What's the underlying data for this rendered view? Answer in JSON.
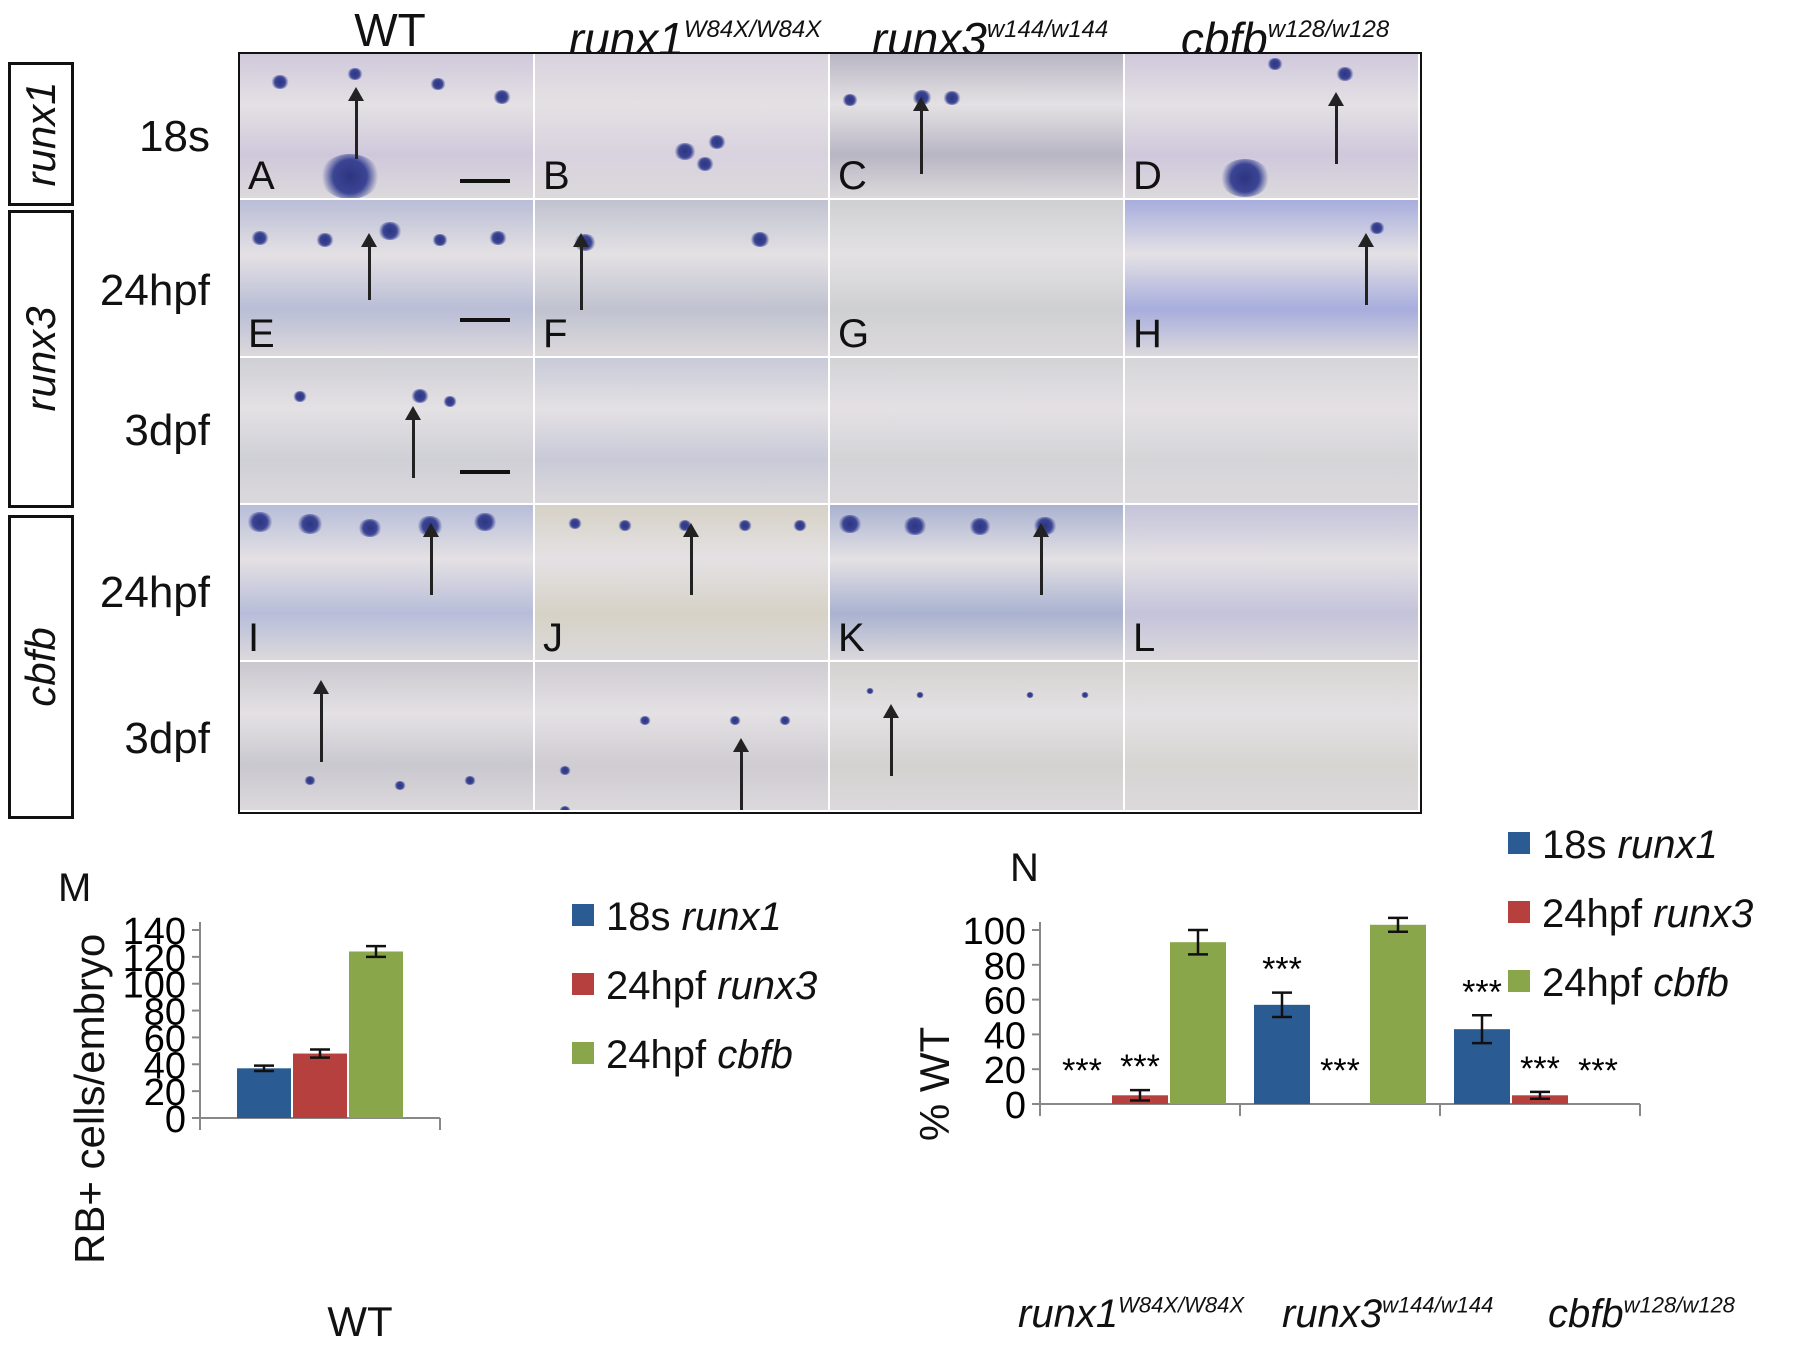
{
  "columns": [
    {
      "gene": "WT",
      "allele": ""
    },
    {
      "gene": "runx1",
      "allele": "W84X/W84X"
    },
    {
      "gene": "runx3",
      "allele": "w144/w144"
    },
    {
      "gene": "cbfb",
      "allele": "w128/w128"
    }
  ],
  "probes": [
    "runx1",
    "runx3",
    "cbfb"
  ],
  "rows": [
    {
      "stage": "18s",
      "labels": [
        "A",
        "B",
        "C",
        "D"
      ]
    },
    {
      "stage": "24hpf",
      "labels": [
        "E",
        "F",
        "G",
        "H"
      ]
    },
    {
      "stage": "3dpf",
      "labels": [
        "",
        "",
        "",
        ""
      ]
    },
    {
      "stage": "24hpf",
      "labels": [
        "I",
        "J",
        "K",
        "L"
      ]
    },
    {
      "stage": "3dpf",
      "labels": [
        "",
        "",
        "",
        ""
      ]
    }
  ],
  "colors": {
    "blue": "#2a5b93",
    "red": "#b5403e",
    "green": "#8aa64a",
    "stain": "#3b4594"
  },
  "chart_data": [
    {
      "type": "bar",
      "panel_label": "M",
      "categories": [
        "WT"
      ],
      "series": [
        {
          "name": "18s runx1",
          "values": [
            37
          ],
          "errors": [
            2
          ]
        },
        {
          "name": "24hpf runx3",
          "values": [
            48
          ],
          "errors": [
            3
          ]
        },
        {
          "name": "24hpf cbfb",
          "values": [
            124
          ],
          "errors": [
            4
          ]
        }
      ],
      "ylabel": "RB+ cells/embryo",
      "ylim": [
        0,
        140
      ],
      "yticks": [
        0,
        20,
        40,
        60,
        80,
        100,
        120,
        140
      ],
      "legend_entries": [
        {
          "stage": "18s",
          "gene": "runx1"
        },
        {
          "stage": "24hpf",
          "gene": "runx3"
        },
        {
          "stage": "24hpf",
          "gene": "cbfb"
        }
      ],
      "legend": "right"
    },
    {
      "type": "bar",
      "panel_label": "N",
      "categories": [
        {
          "gene": "runx1",
          "allele": "W84X/W84X"
        },
        {
          "gene": "runx3",
          "allele": "w144/w144"
        },
        {
          "gene": "cbfb",
          "allele": "w128/w128"
        }
      ],
      "series": [
        {
          "name": "18s runx1",
          "values": [
            0,
            57,
            43
          ],
          "errors": [
            0,
            7,
            8
          ]
        },
        {
          "name": "24hpf runx3",
          "values": [
            5,
            0,
            5
          ],
          "errors": [
            3,
            0,
            2
          ]
        },
        {
          "name": "24hpf cbfb",
          "values": [
            93,
            103,
            0
          ],
          "errors": [
            7,
            4,
            0
          ]
        }
      ],
      "significance": "***",
      "ylabel": "% WT",
      "ylim": [
        0,
        100
      ],
      "yticks": [
        0,
        20,
        40,
        60,
        80,
        100
      ],
      "legend_entries": [
        {
          "stage": "18s",
          "gene": "runx1"
        },
        {
          "stage": "24hpf",
          "gene": "runx3"
        },
        {
          "stage": "24hpf",
          "gene": "cbfb"
        }
      ],
      "legend": "top-right"
    }
  ]
}
